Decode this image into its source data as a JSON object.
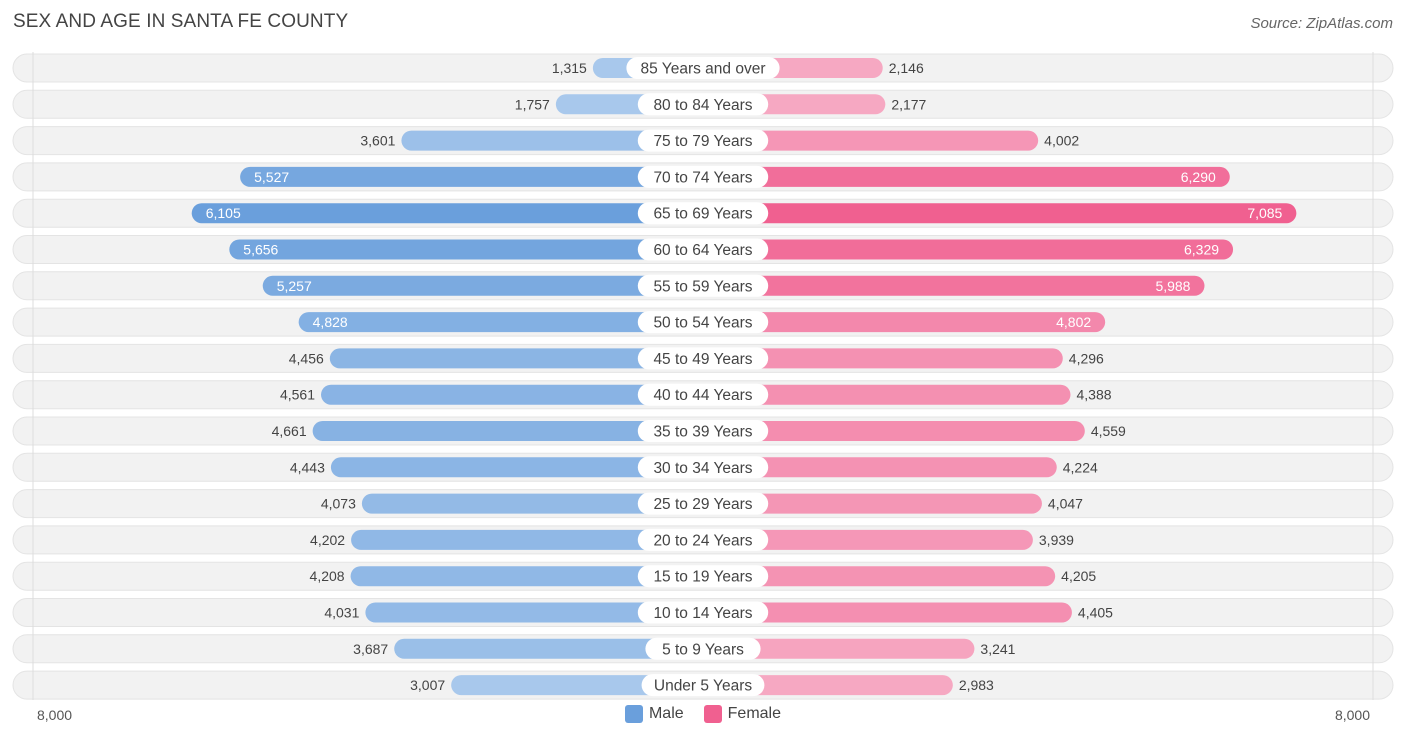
{
  "header": {
    "title": "SEX AND AGE IN SANTA FE COUNTY",
    "source": "Source: ZipAtlas.com"
  },
  "colors": {
    "male_light": "#a8c8ec",
    "male_dark": "#6a9fdc",
    "female_light": "#f6a8c2",
    "female_dark": "#f06090",
    "row_bg": "#f2f2f2",
    "label_bg": "#ffffff"
  },
  "axis": {
    "left_label": "8,000",
    "right_label": "8,000"
  },
  "legend": {
    "male": "Male",
    "female": "Female"
  },
  "chart_data": {
    "type": "bar",
    "orientation": "horizontal-butterfly",
    "xlim": [
      -8000,
      8000
    ],
    "categories": [
      "85 Years and over",
      "80 to 84 Years",
      "75 to 79 Years",
      "70 to 74 Years",
      "65 to 69 Years",
      "60 to 64 Years",
      "55 to 59 Years",
      "50 to 54 Years",
      "45 to 49 Years",
      "40 to 44 Years",
      "35 to 39 Years",
      "30 to 34 Years",
      "25 to 29 Years",
      "20 to 24 Years",
      "15 to 19 Years",
      "10 to 14 Years",
      "5 to 9 Years",
      "Under 5 Years"
    ],
    "series": [
      {
        "name": "Male",
        "values": [
          1315,
          1757,
          3601,
          5527,
          6105,
          5656,
          5257,
          4828,
          4456,
          4561,
          4661,
          4443,
          4073,
          4202,
          4208,
          4031,
          3687,
          3007
        ],
        "labels": [
          "1,315",
          "1,757",
          "3,601",
          "5,527",
          "6,105",
          "5,656",
          "5,257",
          "4,828",
          "4,456",
          "4,561",
          "4,661",
          "4,443",
          "4,073",
          "4,202",
          "4,208",
          "4,031",
          "3,687",
          "3,007"
        ]
      },
      {
        "name": "Female",
        "values": [
          2146,
          2177,
          4002,
          6290,
          7085,
          6329,
          5988,
          4802,
          4296,
          4388,
          4559,
          4224,
          4047,
          3939,
          4205,
          4405,
          3241,
          2983
        ],
        "labels": [
          "2,146",
          "2,177",
          "4,002",
          "6,290",
          "7,085",
          "6,329",
          "5,988",
          "4,802",
          "4,296",
          "4,388",
          "4,559",
          "4,224",
          "4,047",
          "3,939",
          "4,205",
          "4,405",
          "3,241",
          "2,983"
        ]
      }
    ],
    "legend_position": "bottom-center"
  }
}
